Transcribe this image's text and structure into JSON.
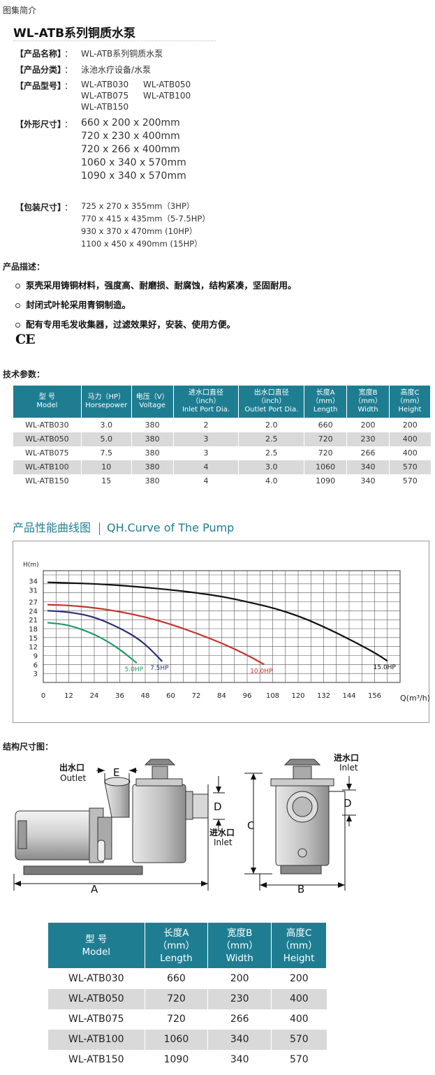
{
  "page": {
    "top_label": "图集简介",
    "product_title": "WL-ATB系列铜质水泵"
  },
  "info": {
    "separator": "：",
    "name_key": "【产品名称】",
    "name_val": "WL-ATB系列铜质水泵",
    "category_key": "【产品分类】",
    "category_val": "泳池水疗设备/水泵",
    "model_key": "【产品型号】",
    "models": [
      "WL-ATB030",
      "WL-ATB050",
      "WL-ATB075",
      "WL-ATB100",
      "WL-ATB150"
    ],
    "size_key": "【外形尺寸】",
    "sizes": [
      "660 x 200 x 200mm",
      "720 x 230 x 400mm",
      "720 x 266 x 400mm",
      "1060 x 340 x 570mm",
      "1090 x 340 x 570mm"
    ],
    "pack_key": "【包装尺寸】",
    "packs": [
      "725 x 270 x 355mm（3HP）",
      "770 x 415 x 435mm（5-7.5HP）",
      "930 x 370 x 470mm (10HP）",
      "1100 x 450 x 490mm (15HP）"
    ]
  },
  "description": {
    "heading": "产品描述：",
    "bullets": [
      "泵壳采用铸铜材料，强度高、耐磨损、耐腐蚀，结构紧凑，坚固耐用。",
      "封闭式叶轮采用青铜制造。",
      "配有专用毛发收集器，过滤效果好，安装、使用方便。"
    ],
    "ce_mark": "CE"
  },
  "tech": {
    "heading": "技术参数：",
    "headers": [
      [
        "型  号",
        "Model"
      ],
      [
        "马力（HP）",
        "Horsepower"
      ],
      [
        "电压（V）",
        "Voltage"
      ],
      [
        "进水口直径",
        "（inch）",
        "Inlet Port Dia."
      ],
      [
        "出水口直径",
        "（inch）",
        "Outlet Port Dia."
      ],
      [
        "长度A",
        "（mm）",
        "Length"
      ],
      [
        "宽度B",
        "（mm）",
        "Width"
      ],
      [
        "高度C",
        "（mm）",
        "Height"
      ]
    ],
    "rows": [
      [
        "WL-ATB030",
        "3.0",
        "380",
        "2",
        "2.0",
        "660",
        "200",
        "200"
      ],
      [
        "WL-ATB050",
        "5.0",
        "380",
        "3",
        "2.5",
        "720",
        "230",
        "400"
      ],
      [
        "WL-ATB075",
        "7.5",
        "380",
        "3",
        "2.5",
        "720",
        "266",
        "400"
      ],
      [
        "WL-ATB100",
        "10",
        "380",
        "4",
        "3.0",
        "1060",
        "340",
        "570"
      ],
      [
        "WL-ATB150",
        "15",
        "380",
        "4",
        "4.0",
        "1090",
        "340",
        "570"
      ]
    ]
  },
  "curve_section": {
    "title_cn": "产品性能曲线图",
    "title_en": "QH.Curve of The Pump"
  },
  "chart_data": {
    "type": "line",
    "title": "",
    "ylabel": "H(m)",
    "xlabel": "Q(m³/h)",
    "xlim": [
      0,
      168
    ],
    "ylim": [
      0,
      36
    ],
    "xticks": [
      0,
      12,
      24,
      36,
      48,
      60,
      72,
      84,
      96,
      108,
      120,
      132,
      144,
      156
    ],
    "yticks": [
      3,
      6,
      9,
      12,
      15,
      18,
      21,
      24,
      27,
      31,
      34
    ],
    "grid": true,
    "series": [
      {
        "name": "5.0HP",
        "color": "#1f9a6a",
        "x": [
          2,
          12,
          24,
          32,
          38,
          44
        ],
        "y": [
          20,
          19.3,
          16.2,
          13,
          10,
          6.5
        ]
      },
      {
        "name": "7.5HP",
        "color": "#2b2e7a",
        "x": [
          2,
          12,
          24,
          36,
          44,
          50,
          56
        ],
        "y": [
          24,
          23.6,
          22,
          18.2,
          15,
          11.5,
          7
        ]
      },
      {
        "name": "10.0HP",
        "color": "#c8312d",
        "x": [
          2,
          12,
          24,
          36,
          48,
          60,
          72,
          84,
          96,
          104
        ],
        "y": [
          26,
          25.8,
          25,
          23.7,
          21.9,
          19.5,
          16.5,
          13.2,
          9.2,
          6
        ]
      },
      {
        "name": "15.0HP",
        "color": "#111111",
        "x": [
          2,
          12,
          24,
          36,
          48,
          60,
          72,
          84,
          96,
          108,
          120,
          132,
          144,
          156,
          162
        ],
        "y": [
          33.5,
          33.3,
          33,
          32.5,
          31.8,
          31,
          30,
          28.8,
          27,
          25,
          22.3,
          18.7,
          14.5,
          10,
          7.2
        ]
      }
    ]
  },
  "structure": {
    "heading": "结构尺寸图：",
    "outlet_cn": "出水口",
    "outlet_en": "Outlet",
    "inlet_cn": "进水口",
    "inlet_en": "Inlet",
    "label_e": "E",
    "label_d": "D",
    "label_a": "A",
    "label_b": "B",
    "label_c": "C"
  },
  "dims_table": {
    "headers": [
      [
        "型  号",
        "Model"
      ],
      [
        "长度A",
        "（mm）",
        "Length"
      ],
      [
        "宽度B",
        "（mm）",
        "Width"
      ],
      [
        "高度C",
        "（mm）",
        "Height"
      ]
    ],
    "rows": [
      [
        "WL-ATB030",
        "660",
        "200",
        "200"
      ],
      [
        "WL-ATB050",
        "720",
        "230",
        "400"
      ],
      [
        "WL-ATB075",
        "720",
        "266",
        "400"
      ],
      [
        "WL-ATB100",
        "1060",
        "340",
        "570"
      ],
      [
        "WL-ATB150",
        "1090",
        "340",
        "570"
      ]
    ]
  },
  "colors": {
    "accent": "#1f7d92",
    "row_alt": "#d9d9d9"
  }
}
